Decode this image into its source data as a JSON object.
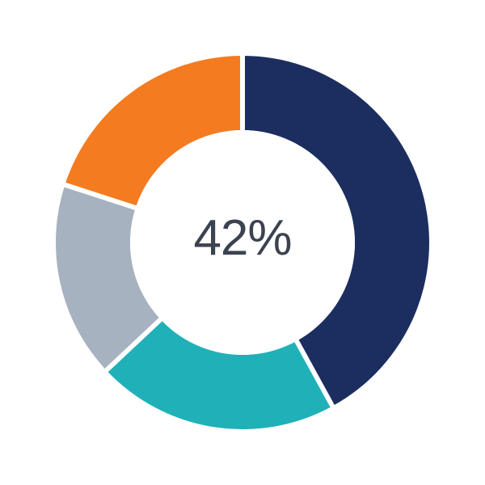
{
  "chart_data": {
    "type": "pie",
    "subtype": "donut",
    "center_label": "42%",
    "segments": [
      {
        "name": "navy",
        "value": 42,
        "color": "#1C2E5F"
      },
      {
        "name": "teal",
        "value": 21,
        "color": "#1FB1B7"
      },
      {
        "name": "gray",
        "value": 17,
        "color": "#A7B2C0"
      },
      {
        "name": "orange",
        "value": 20,
        "color": "#F47B20"
      }
    ],
    "start_angle_deg": 0,
    "direction": "clockwise",
    "inner_radius_ratio": 0.6,
    "separator_color": "#FFFFFF",
    "hole_color": "#FFFFFF",
    "center_text_color": "#3B4350",
    "background_color": "#FFFFFF"
  }
}
